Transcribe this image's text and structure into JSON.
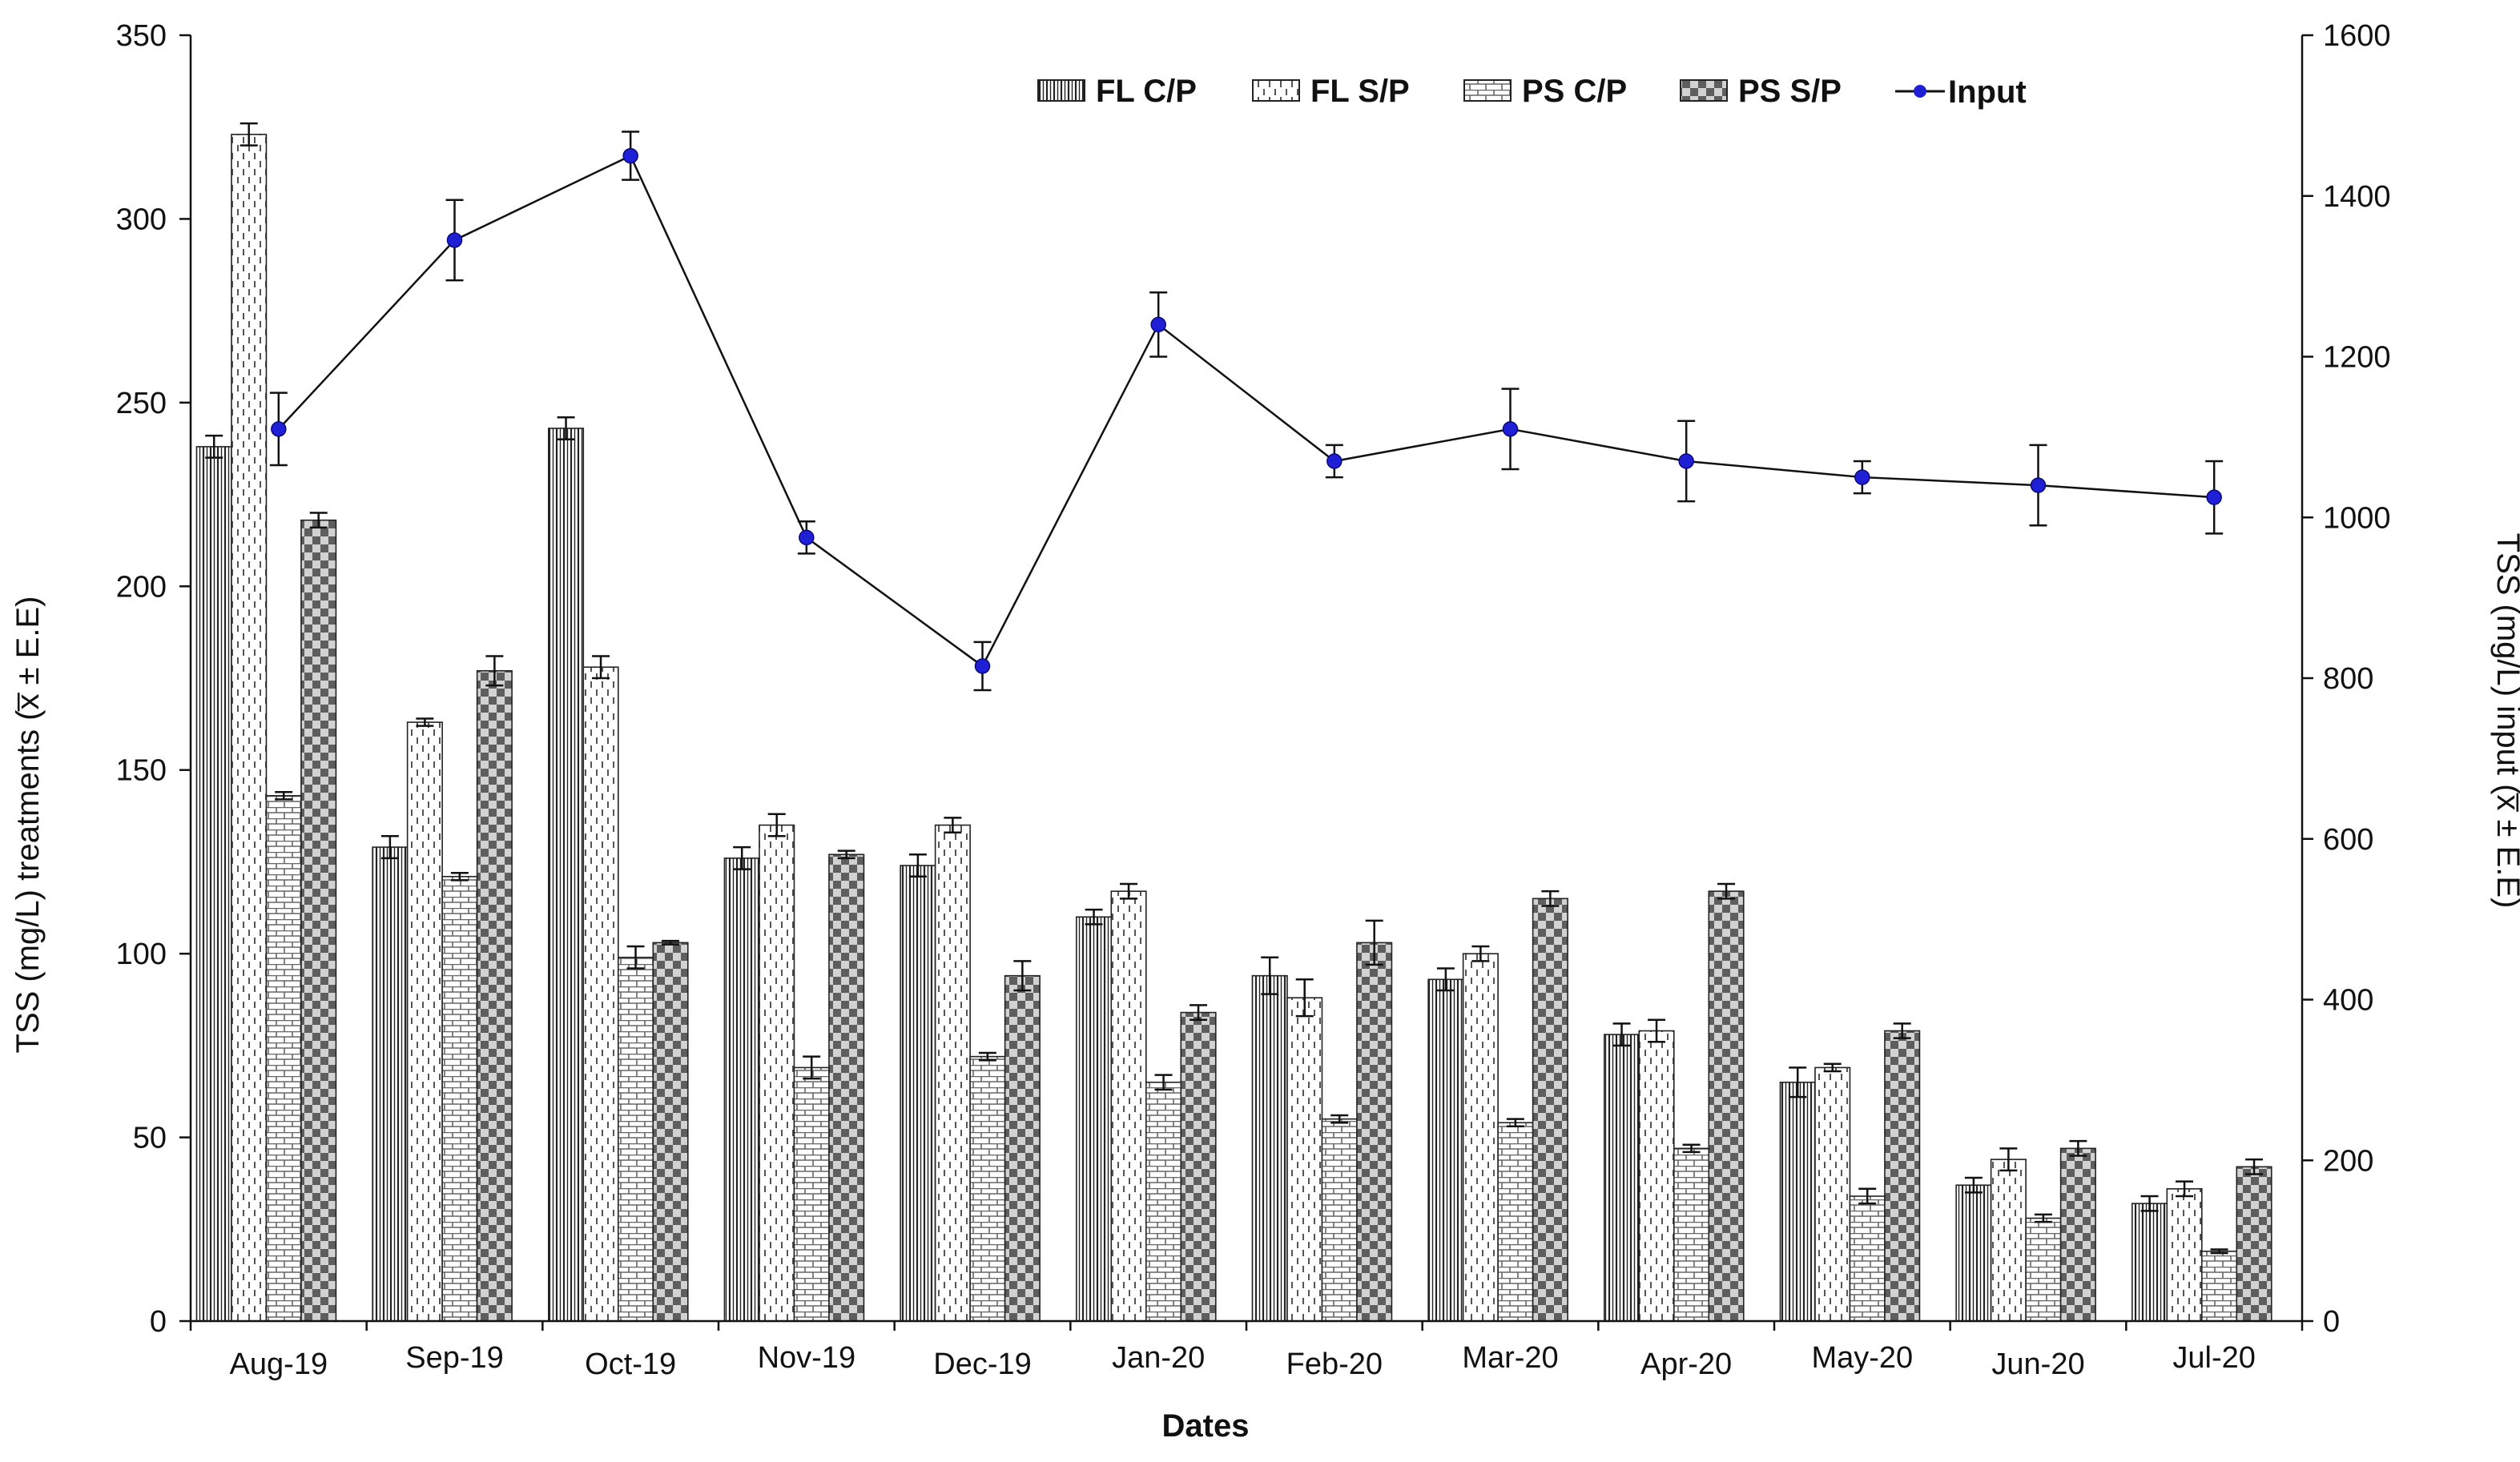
{
  "chart_data": {
    "type": "bar",
    "xlabel": "Dates",
    "ylabel": "TSS (mg/L) treatments (x̅ ± E.E)",
    "y2label": "TSS (mg/L) input (x̅ ± E.E)",
    "ylim": [
      0,
      350
    ],
    "y2lim": [
      0,
      1600
    ],
    "yticks": [
      "0",
      "50",
      "100",
      "150",
      "200",
      "250",
      "300",
      "350"
    ],
    "y2ticks": [
      "0",
      "200",
      "400",
      "600",
      "800",
      "1000",
      "1200",
      "1400",
      "1600"
    ],
    "grid": false,
    "legend_position": "top-center",
    "categories": [
      "Aug-19",
      "Sep-19",
      "Oct-19",
      "Nov-19",
      "Dec-19",
      "Jan-20",
      "Feb-20",
      "Mar-20",
      "Apr-20",
      "May-20",
      "Jun-20",
      "Jul-20"
    ],
    "series": [
      {
        "name": "FL C/P",
        "type": "bar",
        "pattern": "vertical-lines",
        "values": [
          238,
          129,
          243,
          126,
          124,
          110,
          94,
          93,
          78,
          65,
          37,
          32
        ],
        "errors": [
          3,
          3,
          3,
          3,
          3,
          2,
          5,
          3,
          3,
          4,
          2,
          2
        ]
      },
      {
        "name": "FL S/P",
        "type": "bar",
        "pattern": "dashes",
        "values": [
          323,
          163,
          178,
          135,
          135,
          117,
          88,
          100,
          79,
          69,
          44,
          36
        ],
        "errors": [
          3,
          1,
          3,
          3,
          2,
          2,
          5,
          2,
          3,
          1,
          3,
          2
        ]
      },
      {
        "name": "PS C/P",
        "type": "bar",
        "pattern": "bricks",
        "values": [
          143,
          121,
          99,
          69,
          72,
          65,
          55,
          54,
          47,
          34,
          28,
          19
        ],
        "errors": [
          1,
          1,
          3,
          3,
          1,
          2,
          1,
          1,
          1,
          2,
          1,
          0.5
        ]
      },
      {
        "name": "PS S/P",
        "type": "bar",
        "pattern": "checker",
        "values": [
          218,
          177,
          103,
          127,
          94,
          84,
          103,
          115,
          117,
          79,
          47,
          42
        ],
        "errors": [
          2,
          4,
          0.5,
          1,
          4,
          2,
          6,
          2,
          2,
          2,
          2,
          2
        ]
      },
      {
        "name": "Input",
        "type": "line",
        "axis": "y2",
        "color": "#1f1fd6",
        "values": [
          1110,
          1345,
          1450,
          975,
          815,
          1240,
          1070,
          1110,
          1070,
          1050,
          1040,
          1025
        ],
        "errors": [
          45,
          50,
          30,
          20,
          30,
          40,
          20,
          50,
          50,
          20,
          50,
          45
        ]
      }
    ]
  }
}
